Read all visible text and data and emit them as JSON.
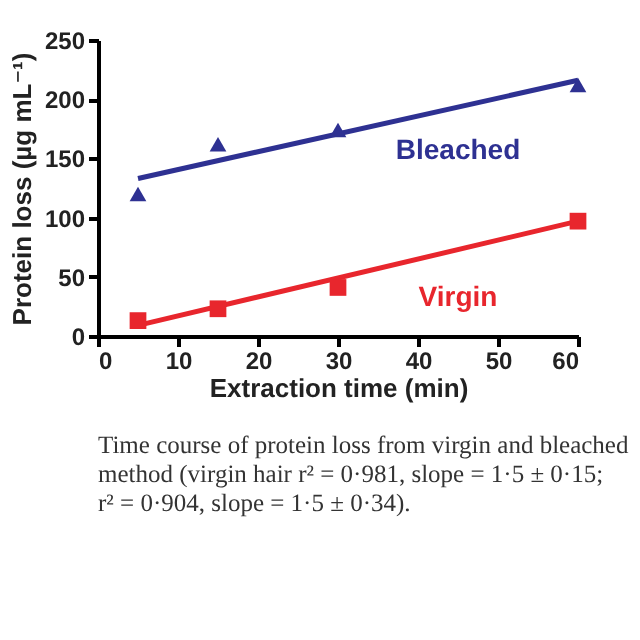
{
  "chart_data": {
    "type": "scatter",
    "xlabel": "Extraction time (min)",
    "ylabel": "Protein loss (µg mL⁻¹)",
    "xlim": [
      0,
      60
    ],
    "xticks": [
      0,
      10,
      20,
      30,
      40,
      50,
      60
    ],
    "ylim": [
      0,
      250
    ],
    "yticks": [
      0,
      50,
      100,
      150,
      200,
      250
    ],
    "grid": false,
    "legend": false,
    "series": [
      {
        "name": "Bleached",
        "marker": "triangle",
        "color": "#2e3192",
        "x": [
          5,
          15,
          30,
          60
        ],
        "values": [
          120,
          162,
          174,
          212
        ]
      },
      {
        "type": "line",
        "marker": "none",
        "color": "#2e3192",
        "x": [
          5,
          60
        ],
        "values": [
          133,
          216
        ]
      },
      {
        "name": "Virgin",
        "marker": "square",
        "color": "#e8262d",
        "x": [
          5,
          15,
          30,
          60
        ],
        "values": [
          13,
          23,
          41,
          97
        ]
      },
      {
        "type": "line",
        "marker": "none",
        "color": "#e8262d",
        "x": [
          5,
          60
        ],
        "values": [
          9,
          97
        ]
      }
    ],
    "annotations": [
      "Time course of protein loss from virgin and bleached",
      "method (virgin hair r² = 0·981, slope = 1·5 ± 0·15;",
      "r² = 0·904, slope = 1·5 ± 0·34)."
    ]
  }
}
